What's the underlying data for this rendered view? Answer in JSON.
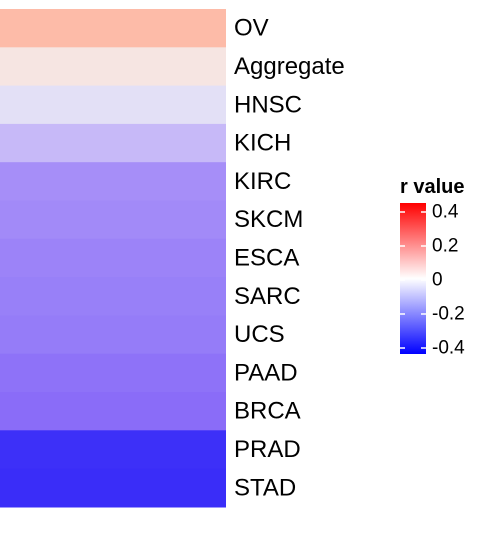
{
  "chart_data": {
    "type": "heatmap",
    "rows": [
      "OV",
      "Aggregate",
      "HNSC",
      "KICH",
      "KIRC",
      "SKCM",
      "ESCA",
      "SARC",
      "UCS",
      "PAAD",
      "BRCA",
      "PRAD",
      "STAD"
    ],
    "values": [
      0.14,
      0.06,
      -0.03,
      -0.1,
      -0.15,
      -0.16,
      -0.17,
      -0.18,
      -0.19,
      -0.2,
      -0.21,
      -0.3,
      -0.32
    ],
    "colors": [
      "#fdbba8",
      "#f6e5e2",
      "#e3e0f6",
      "#c7b9f8",
      "#a68ef8",
      "#a28af8",
      "#9c83f8",
      "#9880f8",
      "#957cf8",
      "#8e72f8",
      "#8a6cf8",
      "#3d30f8",
      "#3a2df8"
    ],
    "legend": {
      "title": "r value",
      "range": [
        -0.4,
        0.4
      ],
      "ticks": [
        0.4,
        0.2,
        0,
        -0.2,
        -0.4
      ],
      "tick_labels": [
        "0.4",
        "0.2",
        "0",
        "-0.2",
        "-0.4"
      ],
      "color_stops": [
        "#0000ff",
        "#ffffff",
        "#ff0000"
      ]
    }
  }
}
